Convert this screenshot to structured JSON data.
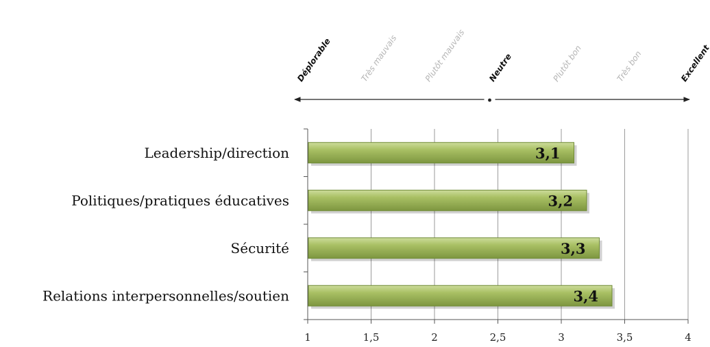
{
  "chart_data": {
    "type": "bar",
    "orientation": "horizontal",
    "categories": [
      "Leadership/direction",
      "Politiques/pratiques éducatives",
      "Sécurité",
      "Relations interpersonnelles/soutien"
    ],
    "values": [
      3.1,
      3.2,
      3.3,
      3.4
    ],
    "value_labels": [
      "3,1",
      "3,2",
      "3,3",
      "3,4"
    ],
    "xlim": [
      1,
      4
    ],
    "x_ticks": [
      1,
      1.5,
      2,
      2.5,
      3,
      3.5,
      4
    ],
    "x_tick_labels": [
      "1",
      "1,5",
      "2",
      "2,5",
      "3",
      "3,5",
      "4"
    ],
    "grid": "vertical",
    "bar_color": "#a4bd5c",
    "scale_labels": [
      {
        "text": "Déplorable",
        "emphasis": true
      },
      {
        "text": "Très mauvais",
        "emphasis": false
      },
      {
        "text": "Plutôt mauvais",
        "emphasis": false
      },
      {
        "text": "Neutre",
        "emphasis": true
      },
      {
        "text": "Plutôt bon",
        "emphasis": false
      },
      {
        "text": "Très bon",
        "emphasis": false
      },
      {
        "text": "Excellent",
        "emphasis": true
      }
    ]
  }
}
